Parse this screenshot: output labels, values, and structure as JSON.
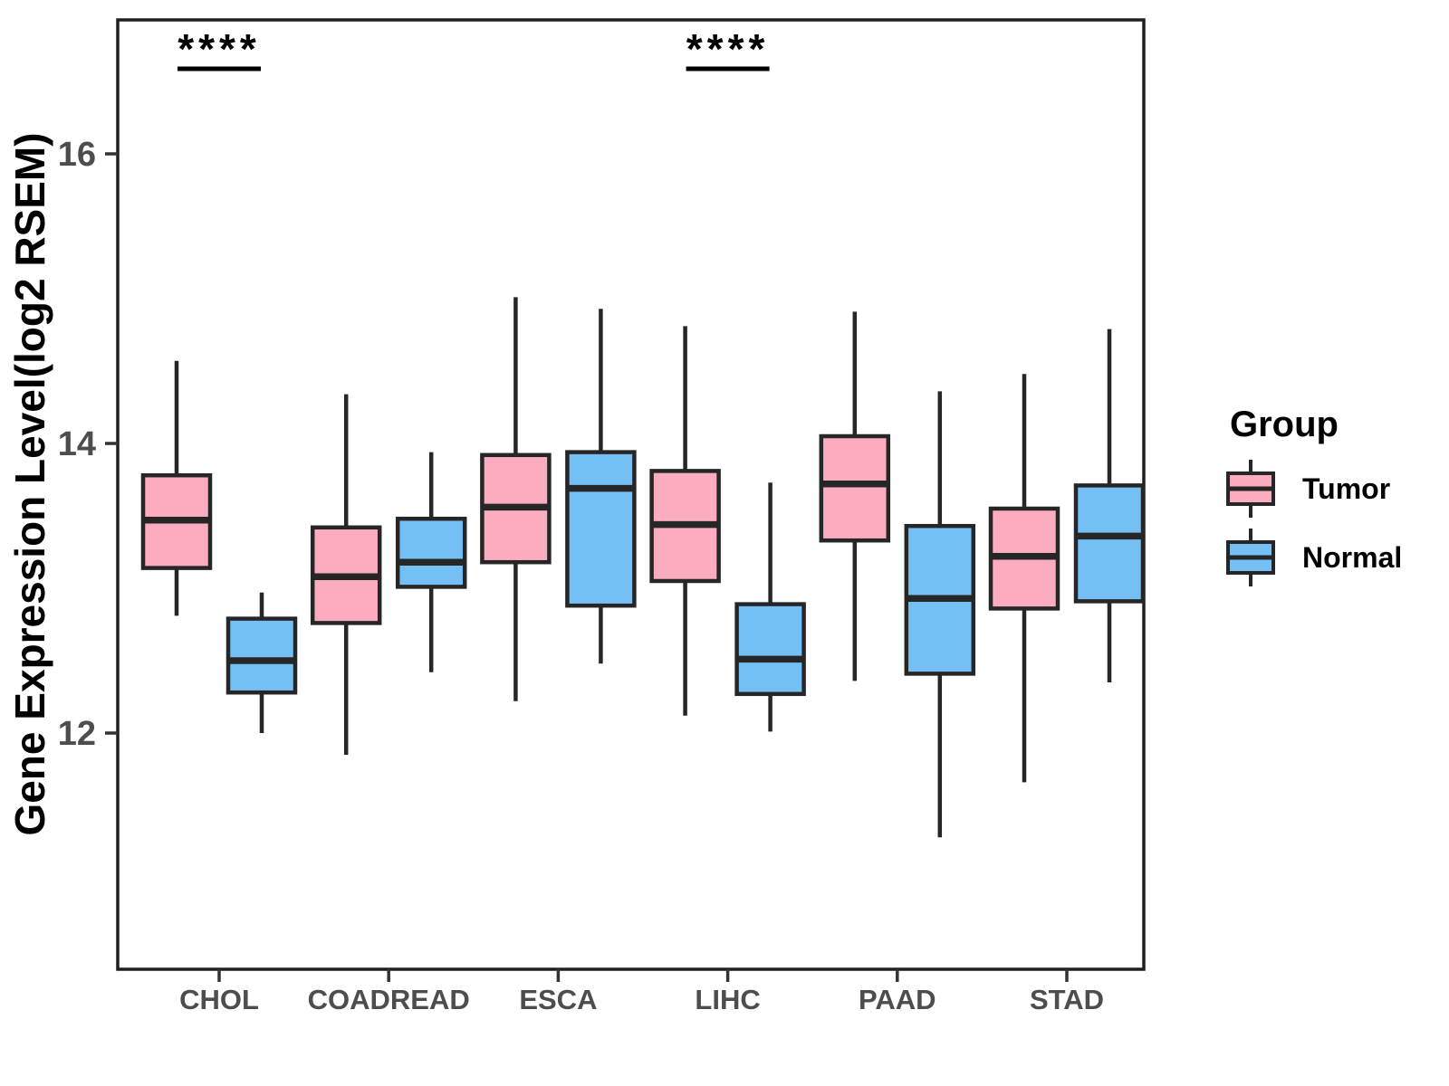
{
  "chart_data": {
    "type": "grouped_boxplot",
    "title": "",
    "xlabel": "",
    "ylabel": "Gene Expression Level(log2 RSEM)",
    "categories": [
      "CHOL",
      "COADREAD",
      "ESCA",
      "LIHC",
      "PAAD",
      "STAD"
    ],
    "yticks": [
      12,
      14,
      16
    ],
    "ylim": [
      10.4,
      16.95
    ],
    "grid": false,
    "colors": {
      "tumor_fill": "#FBACBF",
      "normal_fill": "#74C0F5",
      "box_border": "#262626",
      "panel_border": "#1F1F1F",
      "tick": "#333333",
      "axis_text": "#4D4D4D",
      "annotation": "#000000"
    },
    "legend": {
      "title": "Group",
      "position": "right",
      "items": [
        {
          "label": "Tumor",
          "color": "#FBACBF"
        },
        {
          "label": "Normal",
          "color": "#74C0F5"
        }
      ]
    },
    "series": [
      {
        "name": "Tumor",
        "color": "#FBACBF",
        "boxes": [
          {
            "category": "CHOL",
            "whisker_low": 12.81,
            "q1": 13.14,
            "median": 13.47,
            "q3": 13.78,
            "whisker_high": 14.57
          },
          {
            "category": "COADREAD",
            "whisker_low": 11.85,
            "q1": 12.76,
            "median": 13.08,
            "q3": 13.42,
            "whisker_high": 14.34
          },
          {
            "category": "ESCA",
            "whisker_low": 12.22,
            "q1": 13.18,
            "median": 13.56,
            "q3": 13.92,
            "whisker_high": 15.01
          },
          {
            "category": "LIHC",
            "whisker_low": 12.12,
            "q1": 13.05,
            "median": 13.44,
            "q3": 13.81,
            "whisker_high": 14.81
          },
          {
            "category": "PAAD",
            "whisker_low": 12.36,
            "q1": 13.33,
            "median": 13.72,
            "q3": 14.05,
            "whisker_high": 14.91
          },
          {
            "category": "STAD",
            "whisker_low": 11.66,
            "q1": 12.86,
            "median": 13.22,
            "q3": 13.55,
            "whisker_high": 14.48
          }
        ]
      },
      {
        "name": "Normal",
        "color": "#74C0F5",
        "boxes": [
          {
            "category": "CHOL",
            "whisker_low": 12.0,
            "q1": 12.28,
            "median": 12.5,
            "q3": 12.79,
            "whisker_high": 12.97
          },
          {
            "category": "COADREAD",
            "whisker_low": 12.42,
            "q1": 13.01,
            "median": 13.18,
            "q3": 13.48,
            "whisker_high": 13.94
          },
          {
            "category": "ESCA",
            "whisker_low": 12.48,
            "q1": 12.88,
            "median": 13.69,
            "q3": 13.94,
            "whisker_high": 14.93
          },
          {
            "category": "LIHC",
            "whisker_low": 12.01,
            "q1": 12.27,
            "median": 12.51,
            "q3": 12.89,
            "whisker_high": 13.73
          },
          {
            "category": "PAAD",
            "whisker_low": 11.28,
            "q1": 12.41,
            "median": 12.93,
            "q3": 13.43,
            "whisker_high": 14.36
          },
          {
            "category": "STAD",
            "whisker_low": 12.35,
            "q1": 12.91,
            "median": 13.36,
            "q3": 13.71,
            "whisker_high": 14.79
          }
        ]
      }
    ],
    "annotations": [
      {
        "category": "CHOL",
        "label": "****"
      },
      {
        "category": "LIHC",
        "label": "****"
      }
    ]
  }
}
